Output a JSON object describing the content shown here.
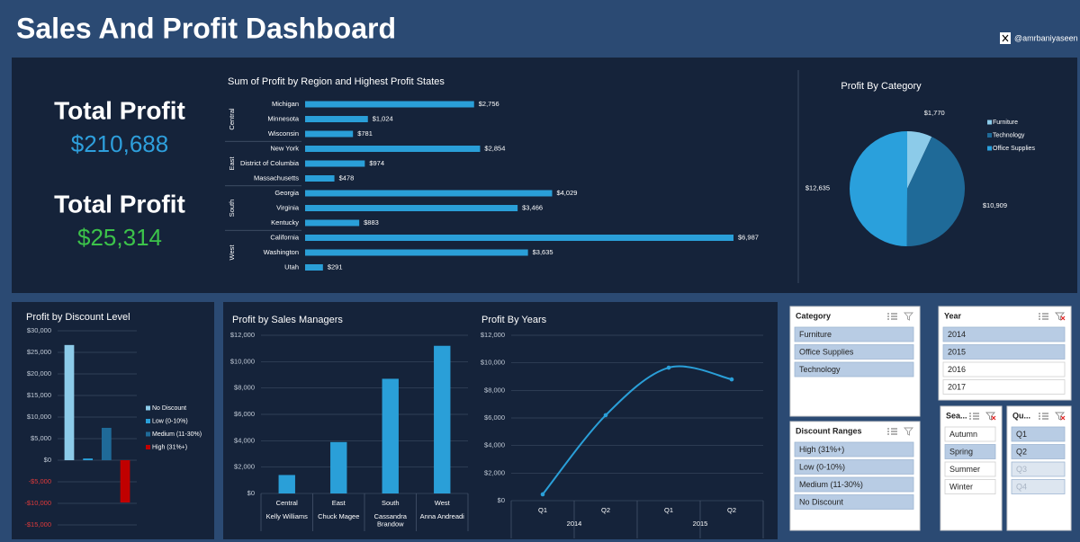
{
  "header": {
    "title": "Sales And Profit Dashboard",
    "handle": "@amrbaniyaseen"
  },
  "kpis": [
    {
      "label": "Total Profit",
      "value": "$210,688"
    },
    {
      "label": "Total Profit",
      "value": "$25,314"
    }
  ],
  "chart_data": [
    {
      "type": "bar",
      "horizontal": true,
      "title": "Sum of Profit by Region and Highest Profit States",
      "categories": [
        "Michigan",
        "Minnesota",
        "Wisconsin",
        "New York",
        "District of Columbia",
        "Massachusetts",
        "Georgia",
        "Virginia",
        "Kentucky",
        "California",
        "Washington",
        "Utah"
      ],
      "groups": [
        "Central",
        "Central",
        "Central",
        "East",
        "East",
        "East",
        "South",
        "South",
        "South",
        "West",
        "West",
        "West"
      ],
      "values": [
        2756,
        1024,
        781,
        2854,
        974,
        478,
        4029,
        3466,
        883,
        6987,
        3635,
        291
      ],
      "value_labels": [
        "$2,756",
        "$1,024",
        "$781",
        "$2,854",
        "$974",
        "$478",
        "$4,029",
        "$3,466",
        "$883",
        "$6,987",
        "$3,635",
        "$291"
      ],
      "color": "#2a9fd8"
    },
    {
      "type": "pie",
      "title": "Profit By Category",
      "categories": [
        "Furniture",
        "Technology",
        "Office Supplies"
      ],
      "values": [
        1770,
        10909,
        12635
      ],
      "value_labels": [
        "$1,770",
        "$10,909",
        "$12,635"
      ],
      "colors": [
        "#8ccbe9",
        "#1f6a98",
        "#2aa0dc"
      ],
      "legend": "right"
    },
    {
      "type": "bar",
      "title": "Profit by Discount Level",
      "categories": [
        null
      ],
      "series": [
        {
          "name": "No Discount",
          "color": "#8ccbe9",
          "values": [
            26700
          ]
        },
        {
          "name": "Low (0-10%)",
          "color": "#2a9fd8",
          "values": [
            400
          ]
        },
        {
          "name": "Medium (11-30%)",
          "color": "#1f6a98",
          "values": [
            7500
          ]
        },
        {
          "name": "High (31%+)",
          "color": "#c00000",
          "values": [
            -9800
          ]
        }
      ],
      "ylim": [
        -15000,
        30000
      ],
      "yticks": [
        {
          "value": -15000,
          "label": "-$15,000"
        },
        {
          "value": -10000,
          "label": "-$10,000"
        },
        {
          "value": -5000,
          "label": "-$5,000"
        },
        {
          "value": 0,
          "label": "$0"
        },
        {
          "value": 5000,
          "label": "$5,000"
        },
        {
          "value": 10000,
          "label": "$10,000"
        },
        {
          "value": 15000,
          "label": "$15,000"
        },
        {
          "value": 20000,
          "label": "$20,000"
        },
        {
          "value": 25000,
          "label": "$25,000"
        },
        {
          "value": 30000,
          "label": "$30,000"
        }
      ],
      "grid": true,
      "legend": "right"
    },
    {
      "type": "bar",
      "title": "Profit by Sales Managers",
      "categories": [
        "Kelly Williams",
        "Chuck Magee",
        "Cassandra Brandow",
        "Anna Andreadi"
      ],
      "groups": [
        "Central",
        "East",
        "South",
        "West"
      ],
      "values": [
        1400,
        3900,
        8700,
        11200
      ],
      "color": "#2a9fd8",
      "ylim": [
        0,
        12000
      ],
      "yticks": [
        {
          "value": 0,
          "label": "$0"
        },
        {
          "value": 2000,
          "label": "$2,000"
        },
        {
          "value": 4000,
          "label": "$4,000"
        },
        {
          "value": 6000,
          "label": "$6,000"
        },
        {
          "value": 8000,
          "label": "$8,000"
        },
        {
          "value": 10000,
          "label": "$10,000"
        },
        {
          "value": 12000,
          "label": "$12,000"
        }
      ],
      "grid": true
    },
    {
      "type": "line",
      "title": "Profit By Years",
      "categories": [
        "Q1",
        "Q2",
        "Q1",
        "Q2"
      ],
      "groups": [
        "2014",
        "2014",
        "2015",
        "2015"
      ],
      "values": [
        460,
        6200,
        9650,
        8800
      ],
      "color": "#2a9fd8",
      "smooth": true,
      "ylim": [
        0,
        12000
      ],
      "yticks": [
        {
          "value": 0,
          "label": "$0"
        },
        {
          "value": 2000,
          "label": "$2,000"
        },
        {
          "value": 4000,
          "label": "$4,000"
        },
        {
          "value": 6000,
          "label": "$6,000"
        },
        {
          "value": 8000,
          "label": "$8,000"
        },
        {
          "value": 10000,
          "label": "$10,000"
        },
        {
          "value": 12000,
          "label": "$12,000"
        }
      ],
      "grid": true
    }
  ],
  "slicers": [
    {
      "title": "Category",
      "items": [
        {
          "label": "Furniture",
          "state": "selected"
        },
        {
          "label": "Office Supplies",
          "state": "selected"
        },
        {
          "label": "Technology",
          "state": "selected"
        }
      ]
    },
    {
      "title": "Discount Ranges",
      "items": [
        {
          "label": "High (31%+)",
          "state": "selected"
        },
        {
          "label": "Low (0-10%)",
          "state": "selected"
        },
        {
          "label": "Medium (11-30%)",
          "state": "selected"
        },
        {
          "label": "No Discount",
          "state": "selected"
        }
      ]
    },
    {
      "title": "Year",
      "items": [
        {
          "label": "2014",
          "state": "selected"
        },
        {
          "label": "2015",
          "state": "selected"
        },
        {
          "label": "2016",
          "state": "unselected"
        },
        {
          "label": "2017",
          "state": "unselected"
        }
      ]
    },
    {
      "title": "Sea...",
      "items": [
        {
          "label": "Autumn",
          "state": "unselected"
        },
        {
          "label": "Spring",
          "state": "selected"
        },
        {
          "label": "Summer",
          "state": "unselected"
        },
        {
          "label": "Winter",
          "state": "unselected"
        }
      ]
    },
    {
      "title": "Qu...",
      "items": [
        {
          "label": "Q1",
          "state": "selected"
        },
        {
          "label": "Q2",
          "state": "selected"
        },
        {
          "label": "Q3",
          "state": "disabled"
        },
        {
          "label": "Q4",
          "state": "disabled"
        }
      ]
    }
  ]
}
